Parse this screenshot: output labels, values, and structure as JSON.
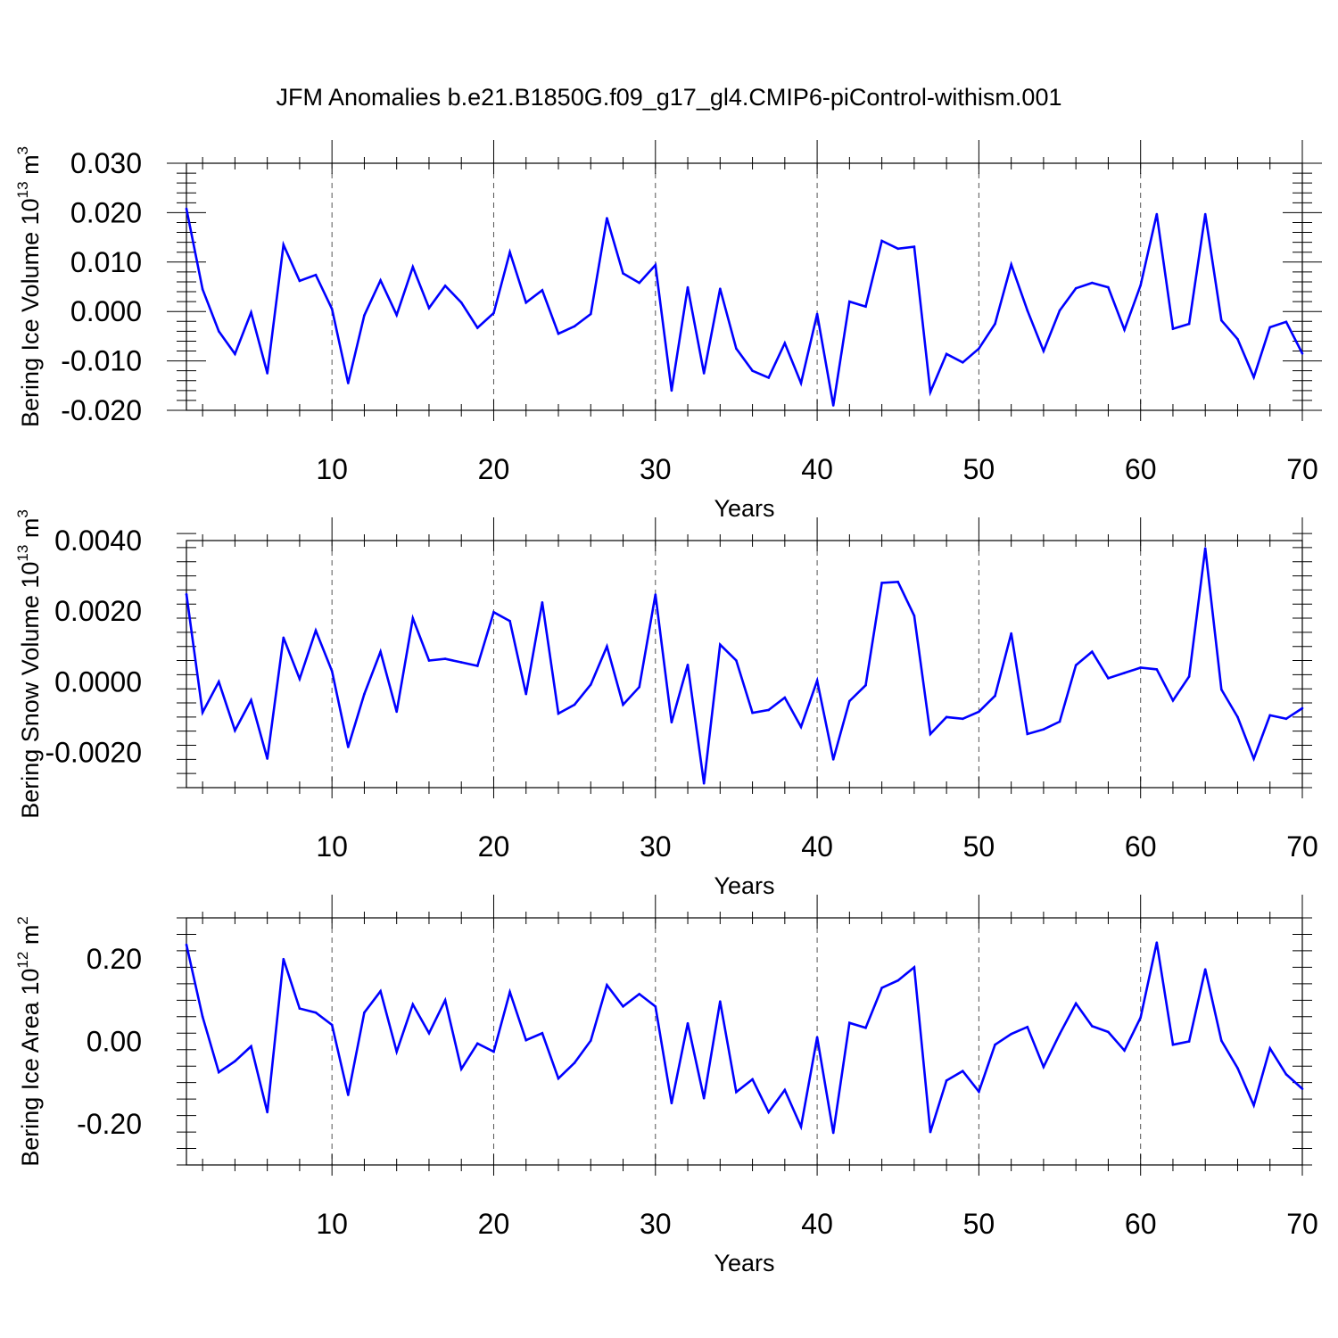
{
  "figure_title": "JFM Anomalies b.e21.B1850G.f09_g17_gl4.CMIP6-piControl-withism.001",
  "chart_data": [
    {
      "type": "line",
      "ylabel": "Bering Ice Volume",
      "ylabel_unit_base": "10",
      "ylabel_unit_exp": "13",
      "ylabel_unit": "m",
      "ylabel_unit_unitexp": "3",
      "xlabel": "Years",
      "xlim": [
        1,
        70
      ],
      "ylim": [
        -0.02,
        0.03
      ],
      "xticks": [
        10,
        20,
        30,
        40,
        50,
        60,
        70
      ],
      "yticks": [
        -0.02,
        -0.01,
        0.0,
        0.01,
        0.02,
        0.03
      ],
      "ytick_labels": [
        "-0.020",
        "-0.010",
        "0.000",
        "0.010",
        "0.020",
        "0.030"
      ],
      "grid": "vertical dashed at major x ticks",
      "line_color": "#0000ff",
      "x": [
        1,
        2,
        3,
        4,
        5,
        6,
        7,
        8,
        9,
        10,
        11,
        12,
        13,
        14,
        15,
        16,
        17,
        18,
        19,
        20,
        21,
        22,
        23,
        24,
        25,
        26,
        27,
        28,
        29,
        30,
        31,
        32,
        33,
        34,
        35,
        36,
        37,
        38,
        39,
        40,
        41,
        42,
        43,
        44,
        45,
        46,
        47,
        48,
        49,
        50,
        51,
        52,
        53,
        54,
        55,
        56,
        57,
        58,
        59,
        60,
        61,
        62,
        63,
        64,
        65,
        66,
        67,
        68,
        69,
        70
      ],
      "values": [
        0.0208,
        0.0045,
        -0.004,
        -0.0086,
        -0.0002,
        -0.0125,
        0.0135,
        0.0062,
        0.0074,
        0.0005,
        -0.0145,
        -0.0008,
        0.0063,
        -0.0007,
        0.009,
        0.0007,
        0.0052,
        0.0018,
        -0.0033,
        -0.0003,
        0.012,
        0.0018,
        0.0043,
        -0.0045,
        -0.003,
        -0.0005,
        0.0189,
        0.0077,
        0.0058,
        0.0094,
        -0.016,
        0.0049,
        -0.0125,
        0.0046,
        -0.0075,
        -0.012,
        -0.0134,
        -0.0064,
        -0.0145,
        -0.0005,
        -0.019,
        0.002,
        0.001,
        0.0143,
        0.0127,
        0.0131,
        -0.0163,
        -0.0086,
        -0.0103,
        -0.0075,
        -0.0025,
        0.0095,
        0.0002,
        -0.008,
        0.0002,
        0.0047,
        0.0058,
        0.0049,
        -0.0037,
        0.0053,
        0.0197,
        -0.0035,
        -0.0025,
        0.0197,
        -0.0018,
        -0.0056,
        -0.0133,
        -0.0032,
        -0.0021,
        -0.0085
      ]
    },
    {
      "type": "line",
      "ylabel": "Bering Snow Volume",
      "ylabel_unit_base": "10",
      "ylabel_unit_exp": "13",
      "ylabel_unit": "m",
      "ylabel_unit_unitexp": "3",
      "xlabel": "Years",
      "xlim": [
        1,
        70
      ],
      "ylim": [
        -0.003,
        0.004
      ],
      "xticks": [
        10,
        20,
        30,
        40,
        50,
        60,
        70
      ],
      "yticks": [
        -0.002,
        0.0,
        0.002,
        0.004
      ],
      "ytick_labels": [
        "-0.0020",
        "0.0000",
        "0.0020",
        "0.0040"
      ],
      "grid": "vertical dashed at major x ticks",
      "line_color": "#0000ff",
      "x": [
        1,
        2,
        3,
        4,
        5,
        6,
        7,
        8,
        9,
        10,
        11,
        12,
        13,
        14,
        15,
        16,
        17,
        18,
        19,
        20,
        21,
        22,
        23,
        24,
        25,
        26,
        27,
        28,
        29,
        30,
        31,
        32,
        33,
        34,
        35,
        36,
        37,
        38,
        39,
        40,
        41,
        42,
        43,
        44,
        45,
        46,
        47,
        48,
        49,
        50,
        51,
        52,
        53,
        54,
        55,
        56,
        57,
        58,
        59,
        60,
        61,
        62,
        63,
        64,
        65,
        66,
        67,
        68,
        69,
        70
      ],
      "values": [
        0.00248,
        -0.00087,
        0.0,
        -0.00138,
        -0.00052,
        -0.00218,
        0.00125,
        8e-05,
        0.00145,
        0.0003,
        -0.00185,
        -0.00035,
        0.00085,
        -0.00085,
        0.0018,
        0.0006,
        0.00065,
        0.00055,
        0.00045,
        0.00197,
        0.00172,
        -0.00035,
        0.00225,
        -0.0009,
        -0.00065,
        -8e-05,
        0.001,
        -0.00065,
        -0.00015,
        0.00247,
        -0.00115,
        0.00048,
        -0.00288,
        0.00105,
        0.0006,
        -0.00088,
        -0.0008,
        -0.00045,
        -0.00128,
        3e-05,
        -0.0022,
        -0.00055,
        -0.0001,
        0.0028,
        0.00283,
        0.00187,
        -0.00148,
        -0.001,
        -0.00105,
        -0.00085,
        -0.0004,
        0.00137,
        -0.00148,
        -0.00135,
        -0.00113,
        0.00047,
        0.00085,
        0.0001,
        0.00025,
        0.0004,
        0.00035,
        -0.00053,
        0.00015,
        0.00378,
        -0.00022,
        -0.001,
        -0.00218,
        -0.00095,
        -0.00105,
        -0.00075
      ]
    },
    {
      "type": "line",
      "ylabel": "Bering Ice Area",
      "ylabel_unit_base": "10",
      "ylabel_unit_exp": "12",
      "ylabel_unit": "m",
      "ylabel_unit_unitexp": "2",
      "xlabel": "Years",
      "xlim": [
        1,
        70
      ],
      "ylim": [
        -0.3,
        0.3
      ],
      "xticks": [
        10,
        20,
        30,
        40,
        50,
        60,
        70
      ],
      "yticks": [
        -0.2,
        0.0,
        0.2
      ],
      "ytick_labels": [
        "-0.20",
        "0.00",
        "0.20"
      ],
      "grid": "vertical dashed at major x ticks",
      "line_color": "#0000ff",
      "x": [
        1,
        2,
        3,
        4,
        5,
        6,
        7,
        8,
        9,
        10,
        11,
        12,
        13,
        14,
        15,
        16,
        17,
        18,
        19,
        20,
        21,
        22,
        23,
        24,
        25,
        26,
        27,
        28,
        29,
        30,
        31,
        32,
        33,
        34,
        35,
        36,
        37,
        38,
        39,
        40,
        41,
        42,
        43,
        44,
        45,
        46,
        47,
        48,
        49,
        50,
        51,
        52,
        53,
        54,
        55,
        56,
        57,
        58,
        59,
        60,
        61,
        62,
        63,
        64,
        65,
        66,
        67,
        68,
        69,
        70
      ],
      "values": [
        0.235,
        0.06,
        -0.075,
        -0.048,
        -0.012,
        -0.172,
        0.2,
        0.08,
        0.07,
        0.04,
        -0.13,
        0.07,
        0.122,
        -0.025,
        0.09,
        0.02,
        0.1,
        -0.067,
        -0.005,
        -0.025,
        0.12,
        0.003,
        0.02,
        -0.09,
        -0.052,
        0.002,
        0.137,
        0.085,
        0.115,
        0.085,
        -0.15,
        0.044,
        -0.138,
        0.097,
        -0.123,
        -0.092,
        -0.172,
        -0.118,
        -0.207,
        0.01,
        -0.222,
        0.045,
        0.033,
        0.13,
        0.148,
        0.18,
        -0.22,
        -0.095,
        -0.072,
        -0.122,
        -0.008,
        0.018,
        0.035,
        -0.062,
        0.018,
        0.092,
        0.037,
        0.023,
        -0.022,
        0.058,
        0.24,
        -0.008,
        0.0,
        0.175,
        0.002,
        -0.065,
        -0.155,
        -0.017,
        -0.08,
        -0.115
      ]
    }
  ]
}
